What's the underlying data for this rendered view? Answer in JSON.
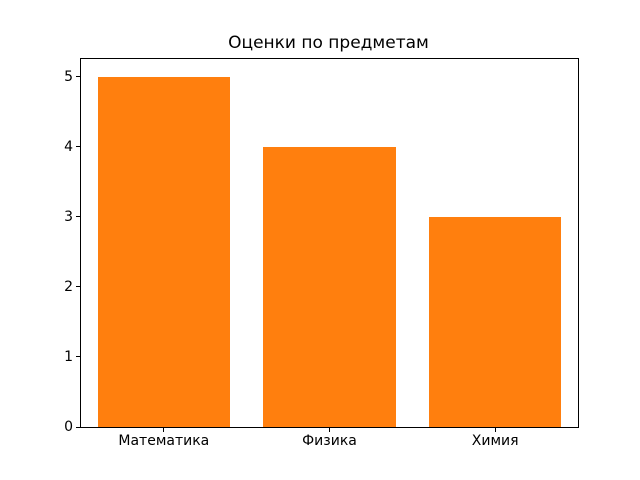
{
  "chart_data": {
    "type": "bar",
    "title": "Оценки по предметам",
    "categories": [
      "Математика",
      "Физика",
      "Химия"
    ],
    "values": [
      5,
      4,
      3
    ],
    "xlabel": "",
    "ylabel": "",
    "ylim": [
      0,
      5.25
    ],
    "yticks": [
      0,
      1,
      2,
      3,
      4,
      5
    ],
    "bar_color": "#ff7f0e",
    "bar_width_fraction": 0.8,
    "grid": false,
    "legend": null,
    "background_color": "#ffffff",
    "axis_color": "#000000"
  }
}
